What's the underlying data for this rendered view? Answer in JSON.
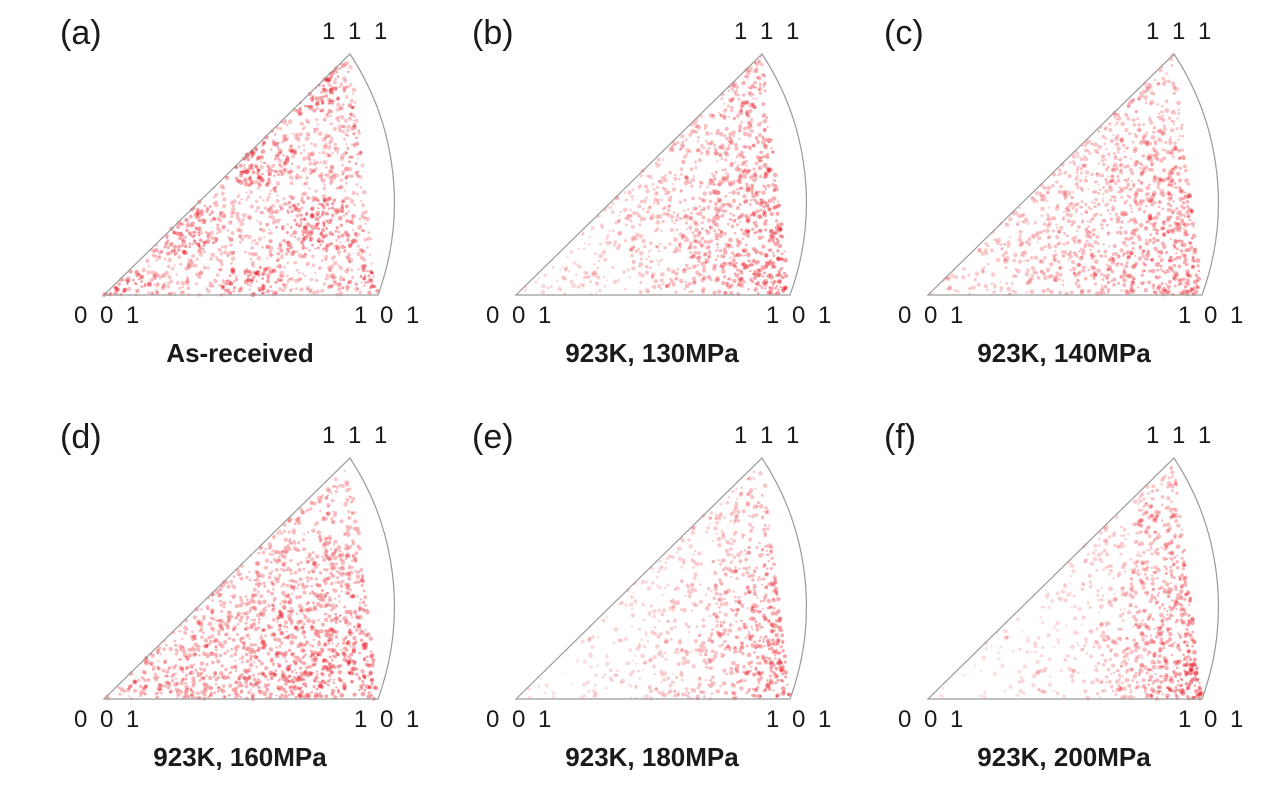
{
  "vertex_labels": {
    "top": "1 1 1",
    "bottom_left": "0 0 1",
    "bottom_right": "1 0 1"
  },
  "panels": [
    {
      "label": "(a)",
      "caption": "As-received"
    },
    {
      "label": "(b)",
      "caption": "923K, 130MPa"
    },
    {
      "label": "(c)",
      "caption": "923K, 140MPa"
    },
    {
      "label": "(d)",
      "caption": "923K, 160MPa"
    },
    {
      "label": "(e)",
      "caption": "923K, 180MPa"
    },
    {
      "label": "(f)",
      "caption": "923K, 200MPa"
    }
  ],
  "colors": {
    "density": "#e8202a",
    "outline": "#9a9a9a",
    "text": "#1a1a1a"
  }
}
